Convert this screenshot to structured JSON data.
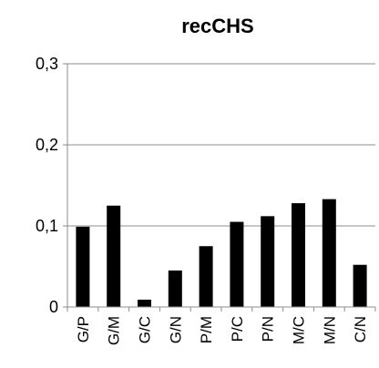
{
  "chart_data": {
    "type": "bar",
    "title": "recCHS",
    "categories": [
      "G/P",
      "G/M",
      "G/C",
      "G/N",
      "P/M",
      "P/C",
      "P/N",
      "M/C",
      "M/N",
      "C/N"
    ],
    "values": [
      0.099,
      0.125,
      0.009,
      0.045,
      0.075,
      0.105,
      0.112,
      0.128,
      0.133,
      0.052
    ],
    "ylim": [
      0,
      0.3
    ],
    "yticks": [
      0,
      0.1,
      0.2,
      0.3
    ],
    "ytick_labels": [
      "0",
      "0,1",
      "0,2",
      "0,3"
    ],
    "grid": true,
    "bar_color": "#000000",
    "xlabel": "",
    "ylabel": ""
  }
}
